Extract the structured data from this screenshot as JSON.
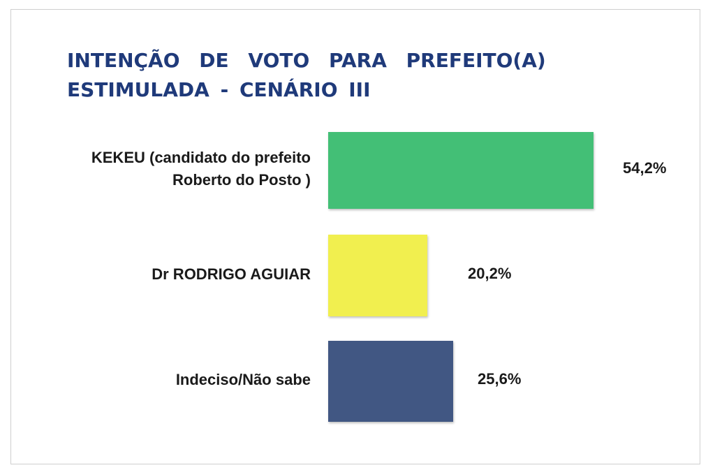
{
  "chart_data": {
    "type": "bar",
    "orientation": "horizontal",
    "title_lines": [
      "INTENÇÃO DE VOTO PARA PREFEITO(A)",
      "ESTIMULADA - CENÁRIO III"
    ],
    "categories": [
      [
        "KEKEU (candidato do prefeito",
        "Roberto do Posto )"
      ],
      [
        "Dr RODRIGO AGUIAR"
      ],
      [
        "Indeciso/Não sabe"
      ]
    ],
    "values": [
      54.2,
      20.2,
      25.6
    ],
    "value_labels": [
      "54,2%",
      "20,2%",
      "25,6%"
    ],
    "colors": [
      "#43bf76",
      "#f1ef4f",
      "#415783"
    ],
    "xlim": [
      0,
      54.2
    ],
    "grid": false,
    "legend": "none"
  }
}
